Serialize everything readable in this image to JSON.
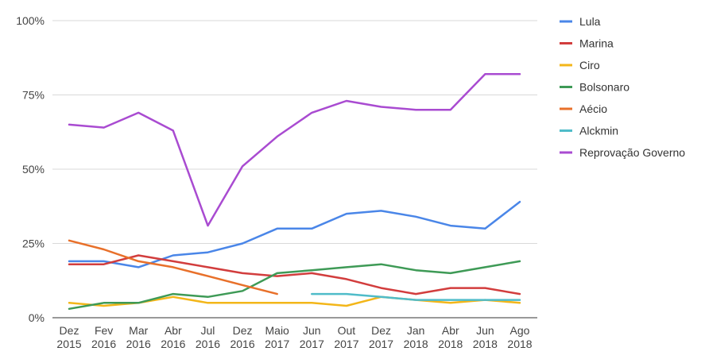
{
  "chart_data": {
    "type": "line",
    "title": "",
    "xlabel": "",
    "ylabel": "",
    "ylim": [
      0,
      100
    ],
    "y_ticks": [
      "0%",
      "25%",
      "50%",
      "75%",
      "100%"
    ],
    "categories": [
      [
        "Dez",
        "2015"
      ],
      [
        "Fev",
        "2016"
      ],
      [
        "Mar",
        "2016"
      ],
      [
        "Abr",
        "2016"
      ],
      [
        "Jul",
        "2016"
      ],
      [
        "Dez",
        "2016"
      ],
      [
        "Maio",
        "2017"
      ],
      [
        "Jun",
        "2017"
      ],
      [
        "Out",
        "2017"
      ],
      [
        "Dez",
        "2017"
      ],
      [
        "Jan",
        "2018"
      ],
      [
        "Abr",
        "2018"
      ],
      [
        "Jun",
        "2018"
      ],
      [
        "Ago",
        "2018"
      ]
    ],
    "grid": true,
    "legend_position": "right",
    "series": [
      {
        "name": "Lula",
        "color": "#4a86e8",
        "values": [
          19,
          19,
          17,
          21,
          22,
          25,
          30,
          30,
          35,
          36,
          34,
          31,
          30,
          39
        ]
      },
      {
        "name": "Marina",
        "color": "#d23d3d",
        "values": [
          18,
          18,
          21,
          19,
          17,
          15,
          14,
          15,
          13,
          10,
          8,
          10,
          10,
          8
        ]
      },
      {
        "name": "Ciro",
        "color": "#f3b619",
        "values": [
          5,
          4,
          5,
          7,
          5,
          5,
          5,
          5,
          4,
          7,
          6,
          5,
          6,
          5
        ]
      },
      {
        "name": "Bolsonaro",
        "color": "#3e9a56",
        "values": [
          3,
          5,
          5,
          8,
          7,
          9,
          15,
          16,
          17,
          18,
          16,
          15,
          17,
          19
        ]
      },
      {
        "name": "Aécio",
        "color": "#e8702a",
        "values": [
          26,
          23,
          19,
          17,
          14,
          11,
          8,
          null,
          null,
          null,
          null,
          null,
          null,
          null
        ]
      },
      {
        "name": "Alckmin",
        "color": "#4fbcc9",
        "values": [
          null,
          null,
          null,
          null,
          null,
          null,
          null,
          8,
          8,
          7,
          6,
          6,
          6,
          6
        ]
      },
      {
        "name": "Reprovação Governo",
        "color": "#a94bd1",
        "values": [
          65,
          64,
          69,
          63,
          31,
          51,
          61,
          69,
          73,
          71,
          70,
          70,
          82,
          82
        ]
      }
    ]
  }
}
